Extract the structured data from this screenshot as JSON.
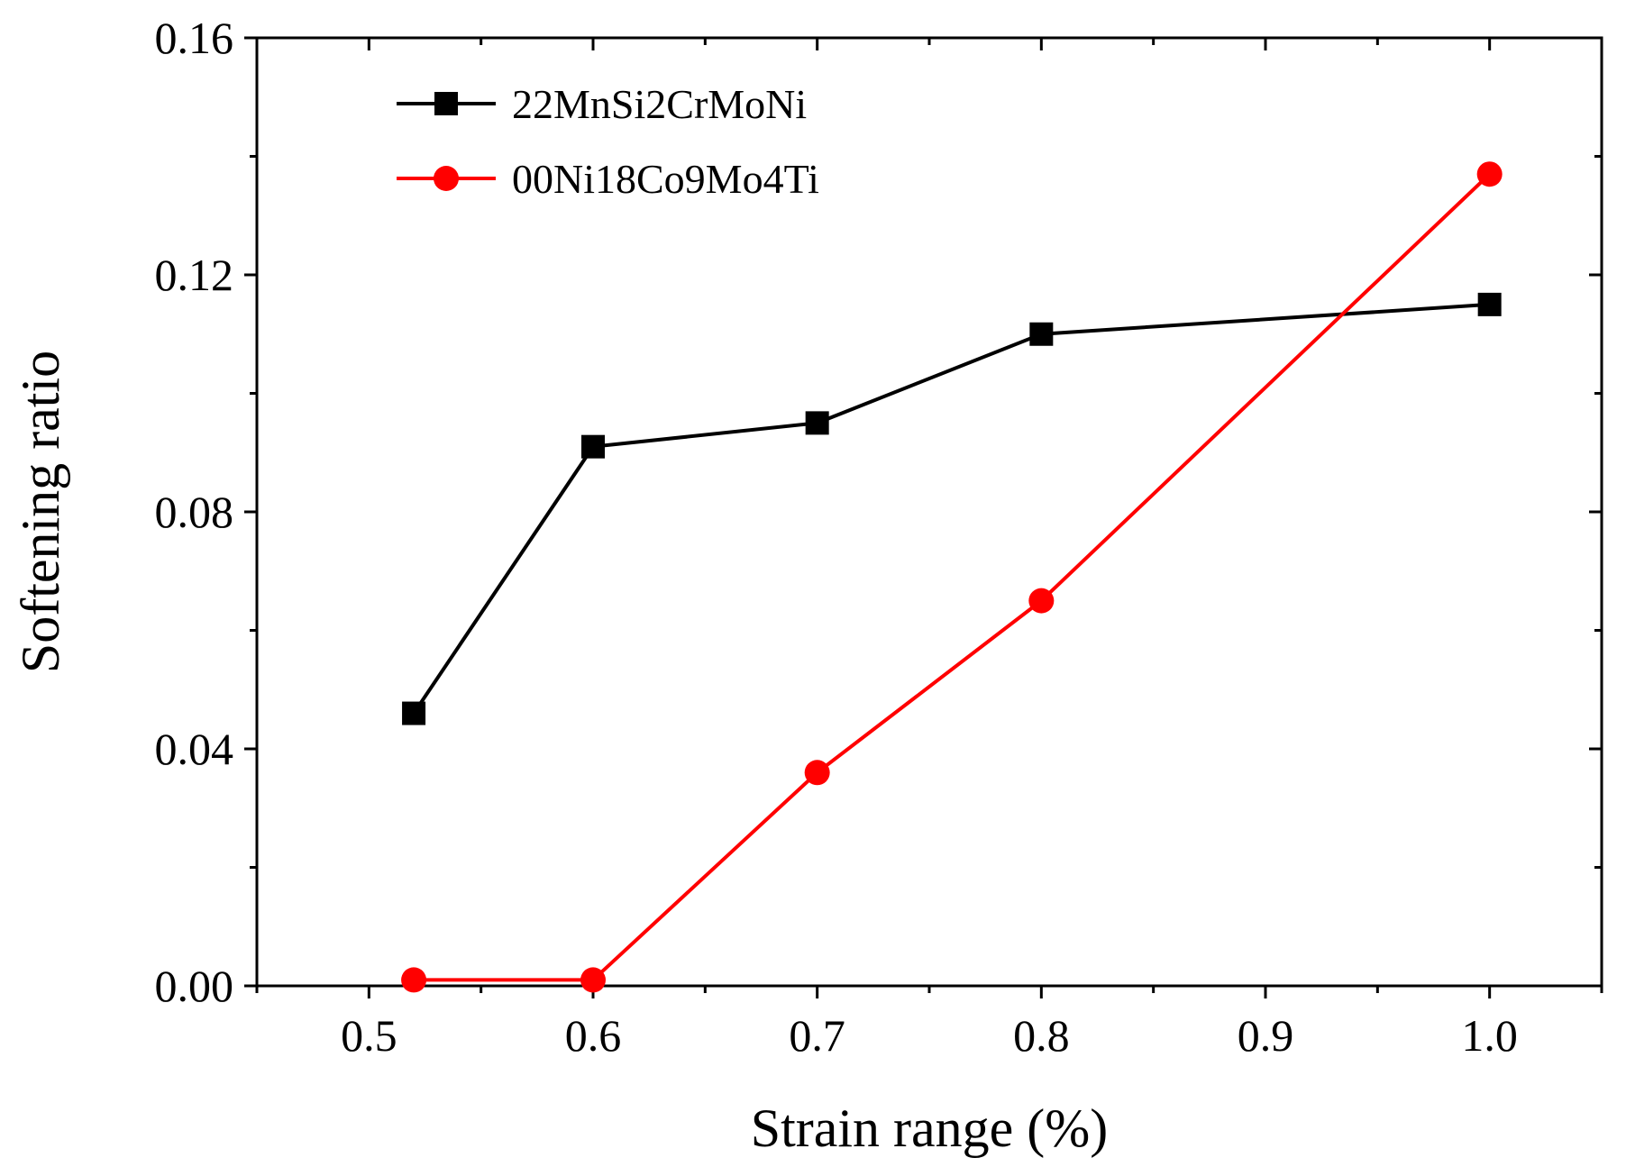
{
  "chart_data": {
    "type": "line",
    "title": "",
    "xlabel": "Strain range (%)",
    "ylabel": "Softening ratio",
    "xlim": [
      0.45,
      1.05
    ],
    "ylim": [
      0.0,
      0.16
    ],
    "xticks": [
      0.5,
      0.6,
      0.7,
      0.8,
      0.9,
      1.0
    ],
    "xtick_labels": [
      "0.5",
      "0.6",
      "0.7",
      "0.8",
      "0.9",
      "1.0"
    ],
    "yticks": [
      0.0,
      0.04,
      0.08,
      0.12,
      0.16
    ],
    "ytick_labels": [
      "0.00",
      "0.04",
      "0.08",
      "0.12",
      "0.16"
    ],
    "grid": false,
    "legend_position": "top-left",
    "series": [
      {
        "name": "22MnSi2CrMoNi",
        "color": "#000000",
        "marker": "square",
        "x": [
          0.52,
          0.6,
          0.7,
          0.8,
          1.0
        ],
        "y": [
          0.046,
          0.091,
          0.095,
          0.11,
          0.115
        ]
      },
      {
        "name": "00Ni18Co9Mo4Ti",
        "color": "#ff0000",
        "marker": "circle",
        "x": [
          0.52,
          0.6,
          0.7,
          0.8,
          1.0
        ],
        "y": [
          0.001,
          0.001,
          0.036,
          0.065,
          0.137
        ]
      }
    ]
  }
}
